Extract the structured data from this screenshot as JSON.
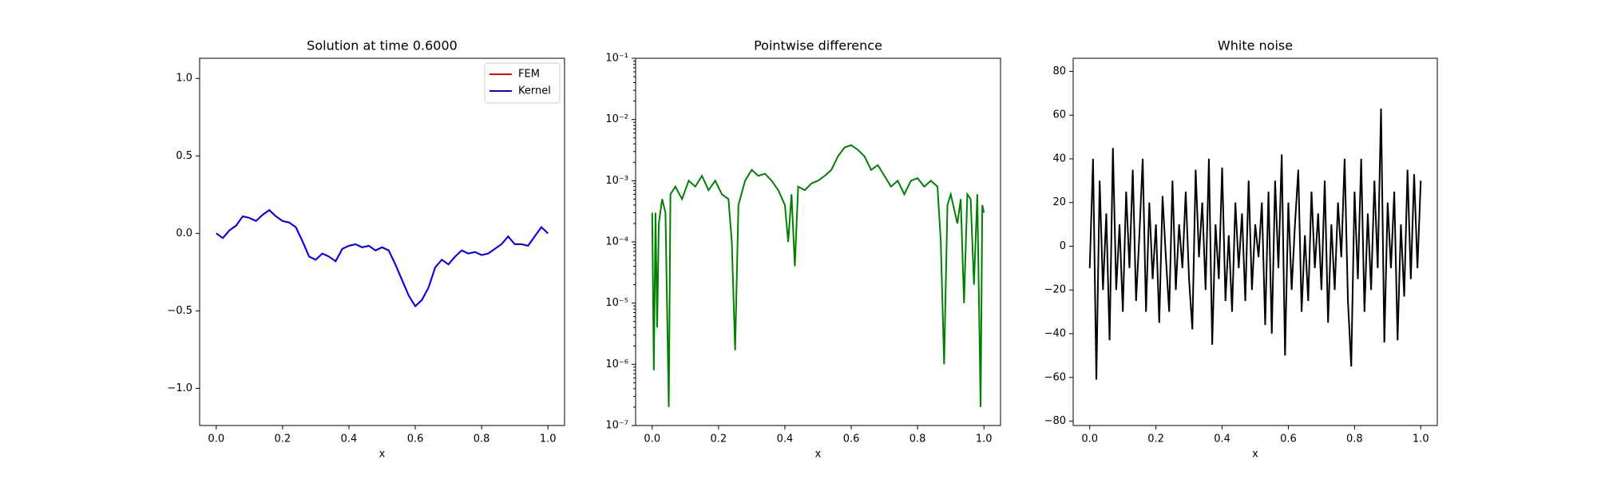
{
  "chart_data": [
    {
      "type": "line",
      "title": "Solution at time 0.6000",
      "xlabel": "x",
      "x": [
        0,
        0.02,
        0.04,
        0.06,
        0.08,
        0.1,
        0.12,
        0.14,
        0.16,
        0.18,
        0.2,
        0.22,
        0.24,
        0.26,
        0.28,
        0.3,
        0.32,
        0.34,
        0.36,
        0.38,
        0.4,
        0.42,
        0.44,
        0.46,
        0.48,
        0.5,
        0.52,
        0.54,
        0.56,
        0.58,
        0.6,
        0.62,
        0.64,
        0.66,
        0.68,
        0.7,
        0.72,
        0.74,
        0.76,
        0.78,
        0.8,
        0.82,
        0.84,
        0.86,
        0.88,
        0.9,
        0.92,
        0.94,
        0.96,
        0.98,
        1.0
      ],
      "series": [
        {
          "name": "FEM",
          "color": "#ff0000",
          "values": [
            0,
            -0.03,
            0.02,
            0.05,
            0.11,
            0.1,
            0.08,
            0.12,
            0.15,
            0.11,
            0.08,
            0.07,
            0.04,
            -0.05,
            -0.15,
            -0.17,
            -0.13,
            -0.15,
            -0.18,
            -0.1,
            -0.08,
            -0.07,
            -0.09,
            -0.08,
            -0.11,
            -0.09,
            -0.11,
            -0.2,
            -0.3,
            -0.4,
            -0.47,
            -0.43,
            -0.35,
            -0.22,
            -0.17,
            -0.2,
            -0.15,
            -0.11,
            -0.13,
            -0.12,
            -0.14,
            -0.13,
            -0.1,
            -0.07,
            -0.02,
            -0.07,
            -0.07,
            -0.08,
            -0.02,
            0.04,
            0
          ]
        },
        {
          "name": "Kernel",
          "color": "#0000ff",
          "values": [
            0,
            -0.03,
            0.02,
            0.05,
            0.11,
            0.1,
            0.08,
            0.12,
            0.15,
            0.11,
            0.08,
            0.07,
            0.04,
            -0.05,
            -0.15,
            -0.17,
            -0.13,
            -0.15,
            -0.18,
            -0.1,
            -0.08,
            -0.07,
            -0.09,
            -0.08,
            -0.11,
            -0.09,
            -0.11,
            -0.2,
            -0.3,
            -0.4,
            -0.47,
            -0.43,
            -0.35,
            -0.22,
            -0.17,
            -0.2,
            -0.15,
            -0.11,
            -0.13,
            -0.12,
            -0.14,
            -0.13,
            -0.1,
            -0.07,
            -0.02,
            -0.07,
            -0.07,
            -0.08,
            -0.02,
            0.04,
            0
          ]
        }
      ],
      "xlim": [
        -0.05,
        1.05
      ],
      "xticks": [
        {
          "value": 0,
          "label": "0.0"
        },
        0.2,
        0.4,
        0.6,
        0.8,
        {
          "value": 1,
          "label": "1.0"
        }
      ],
      "ylim": [
        -1.24,
        1.13
      ],
      "yticks": [
        {
          "value": -1,
          "label": "−1.0"
        },
        {
          "value": -0.5,
          "label": "−0.5"
        },
        {
          "value": 0,
          "label": "0.0"
        },
        0.5,
        {
          "value": 1,
          "label": "1.0"
        }
      ],
      "legend": "upper right"
    },
    {
      "type": "line",
      "title": "Pointwise difference",
      "xlabel": "x",
      "log_y": true,
      "color": "#008000",
      "x": [
        0,
        0.005,
        0.01,
        0.015,
        0.02,
        0.03,
        0.04,
        0.05,
        0.055,
        0.07,
        0.09,
        0.11,
        0.13,
        0.15,
        0.17,
        0.19,
        0.21,
        0.23,
        0.24,
        0.25,
        0.26,
        0.28,
        0.3,
        0.32,
        0.34,
        0.36,
        0.38,
        0.4,
        0.41,
        0.42,
        0.43,
        0.44,
        0.46,
        0.48,
        0.5,
        0.52,
        0.54,
        0.56,
        0.58,
        0.6,
        0.62,
        0.64,
        0.66,
        0.68,
        0.7,
        0.72,
        0.74,
        0.76,
        0.78,
        0.8,
        0.82,
        0.84,
        0.86,
        0.87,
        0.88,
        0.89,
        0.9,
        0.92,
        0.93,
        0.94,
        0.95,
        0.96,
        0.97,
        0.98,
        0.99,
        0.995,
        1.0
      ],
      "values": [
        0.0003,
        8e-07,
        0.0003,
        4e-06,
        0.0002,
        0.0005,
        0.0003,
        2e-07,
        0.0006,
        0.0008,
        0.0005,
        0.001,
        0.0008,
        0.0012,
        0.0007,
        0.001,
        0.0006,
        0.0005,
        0.0001,
        1.7e-06,
        0.0004,
        0.001,
        0.0015,
        0.0012,
        0.0013,
        0.001,
        0.0007,
        0.0004,
        0.0001,
        0.0006,
        4e-05,
        0.0008,
        0.0007,
        0.0009,
        0.001,
        0.0012,
        0.0015,
        0.0025,
        0.0035,
        0.0038,
        0.0032,
        0.0025,
        0.0015,
        0.0018,
        0.0012,
        0.0008,
        0.001,
        0.0006,
        0.001,
        0.0011,
        0.0008,
        0.001,
        0.0008,
        0.0001,
        1e-06,
        0.0004,
        0.0006,
        0.0002,
        0.0005,
        1e-05,
        0.0006,
        0.0005,
        2e-05,
        0.0006,
        2e-07,
        0.0004,
        0.0003
      ],
      "xlim": [
        -0.05,
        1.05
      ],
      "xticks": [
        {
          "value": 0,
          "label": "0.0"
        },
        0.2,
        0.4,
        0.6,
        0.8,
        {
          "value": 1,
          "label": "1.0"
        }
      ],
      "ylim": [
        1e-07,
        0.1
      ],
      "yticks": [
        {
          "value": 1e-07,
          "label": "10⁻⁷"
        },
        {
          "value": 1e-06,
          "label": "10⁻⁶"
        },
        {
          "value": 1e-05,
          "label": "10⁻⁵"
        },
        {
          "value": 0.0001,
          "label": "10⁻⁴"
        },
        {
          "value": 0.001,
          "label": "10⁻³"
        },
        {
          "value": 0.01,
          "label": "10⁻²"
        },
        {
          "value": 0.1,
          "label": "10⁻¹"
        }
      ]
    },
    {
      "type": "line",
      "title": "White noise",
      "xlabel": "x",
      "color": "#000000",
      "x": [
        0,
        0.01,
        0.02,
        0.03,
        0.04,
        0.05,
        0.06,
        0.07,
        0.08,
        0.09,
        0.1,
        0.11,
        0.12,
        0.13,
        0.14,
        0.15,
        0.16,
        0.17,
        0.18,
        0.19,
        0.2,
        0.21,
        0.22,
        0.23,
        0.24,
        0.25,
        0.26,
        0.27,
        0.28,
        0.29,
        0.3,
        0.31,
        0.32,
        0.33,
        0.34,
        0.35,
        0.36,
        0.37,
        0.38,
        0.39,
        0.4,
        0.41,
        0.42,
        0.43,
        0.44,
        0.45,
        0.46,
        0.47,
        0.48,
        0.49,
        0.5,
        0.51,
        0.52,
        0.53,
        0.54,
        0.55,
        0.56,
        0.57,
        0.58,
        0.59,
        0.6,
        0.61,
        0.62,
        0.63,
        0.64,
        0.65,
        0.66,
        0.67,
        0.68,
        0.69,
        0.7,
        0.71,
        0.72,
        0.73,
        0.74,
        0.75,
        0.76,
        0.77,
        0.78,
        0.79,
        0.8,
        0.81,
        0.82,
        0.83,
        0.84,
        0.85,
        0.86,
        0.87,
        0.88,
        0.89,
        0.9,
        0.91,
        0.92,
        0.93,
        0.94,
        0.95,
        0.96,
        0.97,
        0.98,
        0.99,
        1.0
      ],
      "values": [
        -10,
        40,
        -61,
        30,
        -20,
        15,
        -43,
        45,
        -20,
        10,
        -30,
        25,
        -10,
        35,
        -25,
        5,
        40,
        -30,
        20,
        -15,
        10,
        -35,
        23,
        -5,
        -30,
        30,
        -20,
        10,
        -10,
        25,
        -15,
        -38,
        35,
        -5,
        20,
        -20,
        40,
        -45,
        10,
        -15,
        36,
        -25,
        5,
        -30,
        20,
        -10,
        15,
        -25,
        30,
        -20,
        10,
        -5,
        20,
        -36,
        25,
        -40,
        30,
        -10,
        42,
        -50,
        20,
        -20,
        10,
        35,
        -30,
        5,
        -25,
        25,
        -10,
        15,
        -20,
        30,
        -35,
        10,
        -20,
        20,
        -5,
        40,
        -25,
        -55,
        25,
        -15,
        40,
        -30,
        15,
        -20,
        30,
        -10,
        63,
        -44,
        20,
        -10,
        25,
        -43,
        10,
        -23,
        35,
        -15,
        33,
        -10,
        30
      ],
      "xlim": [
        -0.05,
        1.05
      ],
      "xticks": [
        {
          "value": 0,
          "label": "0.0"
        },
        0.2,
        0.4,
        0.6,
        0.8,
        {
          "value": 1,
          "label": "1.0"
        }
      ],
      "ylim": [
        -82,
        86
      ],
      "yticks": [
        {
          "value": -80,
          "label": "−80"
        },
        {
          "value": -60,
          "label": "−60"
        },
        {
          "value": -40,
          "label": "−40"
        },
        {
          "value": -20,
          "label": "−20"
        },
        0,
        20,
        40,
        60,
        80
      ]
    }
  ]
}
